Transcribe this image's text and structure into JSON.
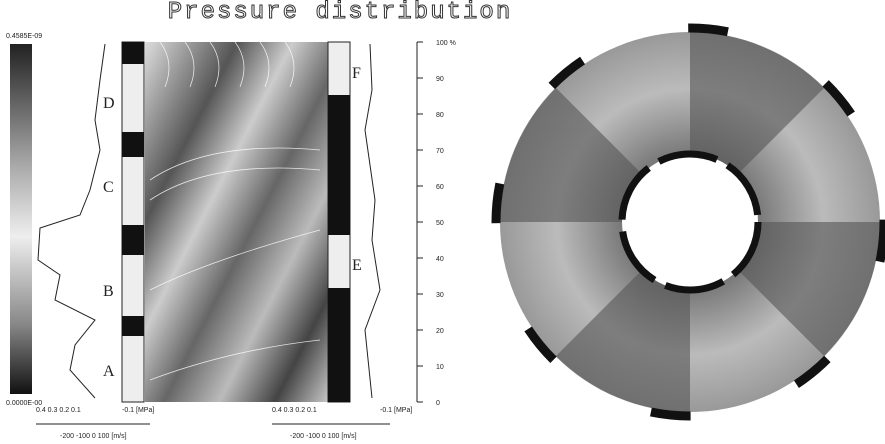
{
  "title": "Pressure distribution",
  "colorbar": {
    "max_label": "0.4585E-09",
    "min_label": "0.0000E-00"
  },
  "axis": {
    "ylim": [
      0,
      100
    ],
    "yticks": [
      0,
      10,
      20,
      30,
      40,
      50,
      60,
      70,
      80,
      90,
      {
        "value": 100,
        "label": "100 %"
      }
    ]
  },
  "left_panel": {
    "pressure_ticks": "0.4  0.3  0.2  0.1",
    "pressure_unit": "-0.1 [MPa]",
    "velocity_ticks": "-200 -100  0  100 [m/s]"
  },
  "right_panel": {
    "pressure_ticks": "0.4  0.3  0.2  0.1",
    "pressure_unit": "-0.1 [MPa]",
    "velocity_ticks": "-200 -100  0  100 [m/s]"
  },
  "zones": [
    "A",
    "B",
    "C",
    "D",
    "E",
    "F"
  ]
}
